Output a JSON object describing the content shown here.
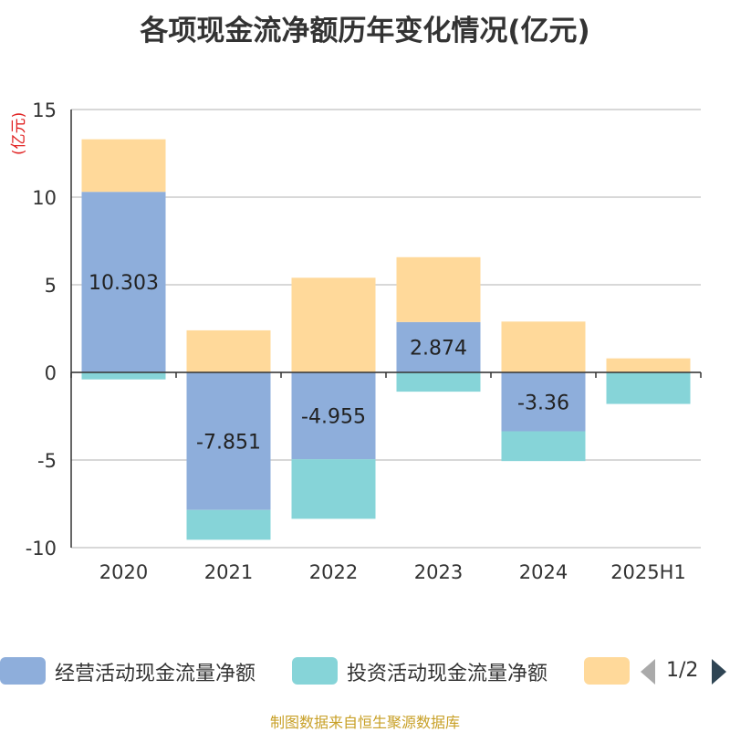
{
  "title": "各项现金流净额历年变化情况(亿元)",
  "y_unit": "(亿元)",
  "source": "制图数据来自恒生聚源数据库",
  "legend": {
    "page": "1/2",
    "items": [
      {
        "label": "经营活动现金流量净额",
        "color": "#8eaedb"
      },
      {
        "label": "投资活动现金流量净额",
        "color": "#86d4d8"
      },
      {
        "label": "",
        "color": "#ffd99a"
      }
    ]
  },
  "chart_data": {
    "type": "bar",
    "stacked": true,
    "categories": [
      "2020",
      "2021",
      "2022",
      "2023",
      "2024",
      "2025H1"
    ],
    "ylim": [
      -10,
      15
    ],
    "yticks": [
      15,
      10,
      5,
      0,
      -5,
      -10
    ],
    "grid": true,
    "legend_position": "bottom",
    "series": [
      {
        "name": "经营活动现金流量净额",
        "color": "#8eaedb",
        "values": [
          10.303,
          -7.851,
          -4.955,
          2.874,
          -3.36,
          0.0
        ],
        "labels": [
          "10.303",
          "-7.851",
          "-4.955",
          "2.874",
          "-3.36",
          ""
        ]
      },
      {
        "name": "投资活动现金流量净额",
        "color": "#86d4d8",
        "values": [
          -0.4,
          -1.7,
          -3.4,
          -1.1,
          -1.7,
          -1.8
        ]
      },
      {
        "name": "",
        "color": "#ffd99a",
        "values": [
          3.0,
          2.4,
          5.4,
          3.7,
          2.9,
          0.8
        ]
      }
    ]
  }
}
